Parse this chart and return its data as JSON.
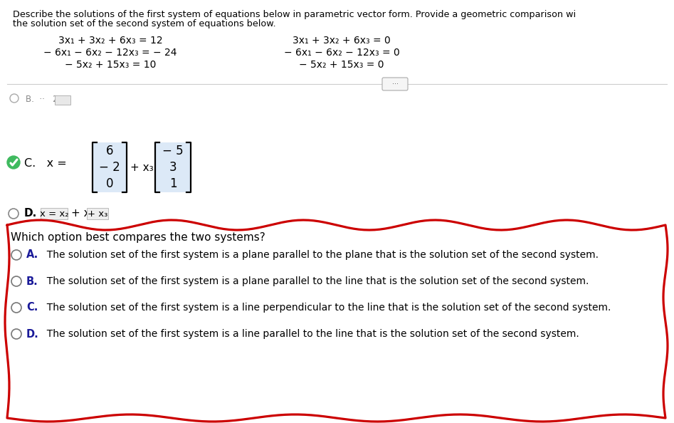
{
  "title_line1": "Describe the solutions of the first system of equations below in parametric vector form. Provide a geometric comparison wi",
  "title_line2": "the solution set of the second system of equations below.",
  "sys1_eq1": "3x₁ + 3x₂ + 6x₃ = 12",
  "sys1_eq2": "− 6x₁ − 6x₂ − 12x₃ = − 24",
  "sys1_eq3": "− 5x₂ + 15x₃ = 10",
  "sys2_eq1": "3x₁ + 3x₂ + 6x₃ = 0",
  "sys2_eq2": "− 6x₁ − 6x₂ − 12x₃ = 0",
  "sys2_eq3": "− 5x₂ + 15x₃ = 0",
  "vec1": [
    "6",
    "− 2",
    "0"
  ],
  "vec2": [
    "− 5",
    "3",
    "1"
  ],
  "plus_x3": "+ x₃",
  "question": "Which option best compares the two systems?",
  "answer_a_label": "A.",
  "answer_a_text": "  The solution set of the first system is a plane parallel to the plane that is the solution set of the second system.",
  "answer_b_label": "B.",
  "answer_b_text": "  The solution set of the first system is a plane parallel to the line that is the solution set of the second system.",
  "answer_c_label": "C.",
  "answer_c_text": "  The solution set of the first system is a line perpendicular to the line that is the solution set of the second system.",
  "answer_d_label": "D.",
  "answer_d_text": "  The solution set of the first system is a line parallel to the line that is the solution set of the second system.",
  "bg_color": "#ffffff",
  "text_color": "#000000",
  "matrix_bg": "#dce9f7",
  "red_color": "#cc0000",
  "sep_color": "#cccccc",
  "radio_edge": "#777777",
  "label_bold_color": "#1a1a99"
}
